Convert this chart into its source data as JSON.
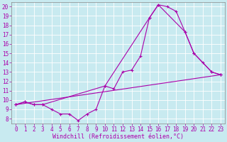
{
  "background_color": "#c8eaf0",
  "grid_color": "#ffffff",
  "line_color": "#aa00aa",
  "marker": "+",
  "markersize": 3,
  "linewidth": 0.8,
  "xlabel": "Windchill (Refroidissement éolien,°C)",
  "xlabel_fontsize": 6,
  "tick_fontsize": 5.5,
  "xlim": [
    -0.5,
    23.5
  ],
  "ylim": [
    7.5,
    20.5
  ],
  "xticks": [
    0,
    1,
    2,
    3,
    4,
    5,
    6,
    7,
    8,
    9,
    10,
    11,
    12,
    13,
    14,
    15,
    16,
    17,
    18,
    19,
    20,
    21,
    22,
    23
  ],
  "yticks": [
    8,
    9,
    10,
    11,
    12,
    13,
    14,
    15,
    16,
    17,
    18,
    19,
    20
  ],
  "line1_x": [
    0,
    1,
    2,
    3,
    4,
    5,
    6,
    7,
    8,
    9,
    10,
    11,
    12,
    13,
    14,
    15,
    16,
    17,
    18,
    19,
    20,
    21,
    22,
    23
  ],
  "line1_y": [
    9.5,
    9.8,
    9.5,
    9.5,
    9.0,
    8.5,
    8.5,
    7.8,
    8.5,
    9.0,
    11.5,
    11.2,
    13.0,
    13.2,
    14.7,
    18.8,
    20.2,
    20.0,
    19.5,
    17.3,
    15.0,
    14.0,
    13.0,
    12.7
  ],
  "line2_x": [
    0,
    1,
    2,
    3,
    10,
    15,
    16,
    19,
    20,
    22,
    23
  ],
  "line2_y": [
    9.5,
    9.8,
    9.5,
    9.5,
    11.5,
    18.8,
    20.2,
    17.3,
    15.0,
    13.0,
    12.7
  ],
  "line3_x": [
    0,
    23
  ],
  "line3_y": [
    9.5,
    12.7
  ]
}
